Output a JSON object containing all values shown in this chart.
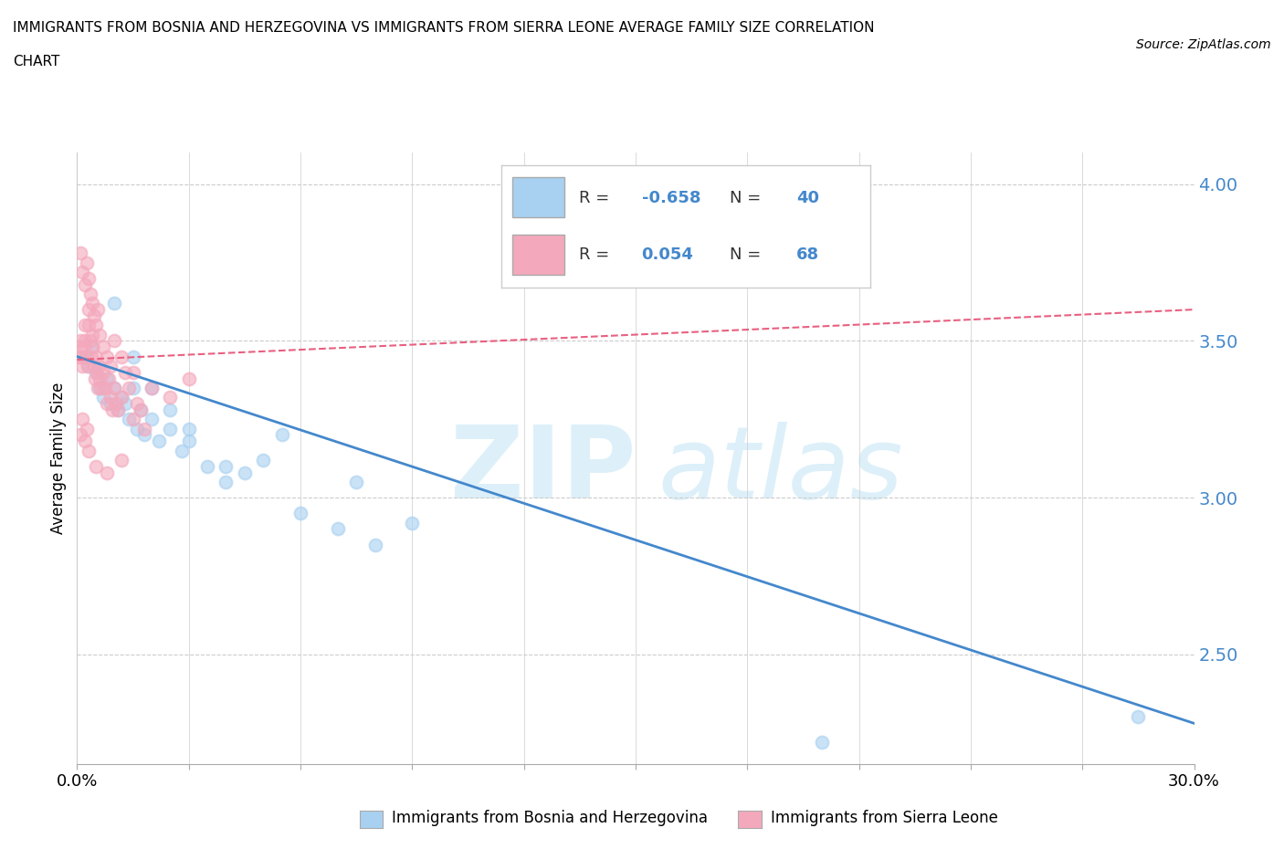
{
  "title_line1": "IMMIGRANTS FROM BOSNIA AND HERZEGOVINA VS IMMIGRANTS FROM SIERRA LEONE AVERAGE FAMILY SIZE CORRELATION",
  "title_line2": "CHART",
  "source": "Source: ZipAtlas.com",
  "ylabel": "Average Family Size",
  "xlim": [
    0.0,
    30.0
  ],
  "ylim": [
    2.15,
    4.1
  ],
  "yticks": [
    2.5,
    3.0,
    3.5,
    4.0
  ],
  "ytick_labels": [
    "2.50",
    "3.00",
    "3.50",
    "4.00"
  ],
  "bosnia_color": "#A8D0F0",
  "sierra_color": "#F4A8BC",
  "bosnia_line_color": "#4488CC",
  "sierra_line_color": "#E86080",
  "legend_box_color": "#A8D0F0",
  "legend_sierra_color": "#F4A8BC",
  "legend_r_color": "#4488CC",
  "legend_n_color": "#4488CC",
  "bosnia_scatter_x": [
    0.2,
    0.3,
    0.4,
    0.5,
    0.6,
    0.7,
    0.8,
    0.9,
    1.0,
    1.1,
    1.2,
    1.3,
    1.4,
    1.5,
    1.6,
    1.7,
    1.8,
    2.0,
    2.2,
    2.5,
    2.8,
    3.0,
    3.5,
    4.0,
    4.5,
    5.0,
    6.0,
    7.0,
    8.0,
    9.0,
    1.0,
    1.5,
    2.0,
    2.5,
    3.0,
    4.0,
    5.5,
    7.5,
    20.0,
    28.5
  ],
  "bosnia_scatter_y": [
    3.45,
    3.42,
    3.48,
    3.4,
    3.35,
    3.32,
    3.38,
    3.3,
    3.35,
    3.28,
    3.32,
    3.3,
    3.25,
    3.35,
    3.22,
    3.28,
    3.2,
    3.25,
    3.18,
    3.22,
    3.15,
    3.18,
    3.1,
    3.05,
    3.08,
    3.12,
    2.95,
    2.9,
    2.85,
    2.92,
    3.62,
    3.45,
    3.35,
    3.28,
    3.22,
    3.1,
    3.2,
    3.05,
    2.22,
    2.3
  ],
  "sierra_scatter_x": [
    0.05,
    0.08,
    0.1,
    0.12,
    0.15,
    0.18,
    0.2,
    0.22,
    0.25,
    0.28,
    0.3,
    0.32,
    0.35,
    0.38,
    0.4,
    0.42,
    0.45,
    0.48,
    0.5,
    0.52,
    0.55,
    0.58,
    0.6,
    0.65,
    0.7,
    0.75,
    0.8,
    0.85,
    0.9,
    0.95,
    1.0,
    1.05,
    1.1,
    1.2,
    1.3,
    1.4,
    1.5,
    1.6,
    1.7,
    1.8,
    0.1,
    0.15,
    0.2,
    0.25,
    0.3,
    0.35,
    0.4,
    0.45,
    0.5,
    0.55,
    0.6,
    0.7,
    0.8,
    0.9,
    1.0,
    1.2,
    1.5,
    2.0,
    2.5,
    3.0,
    0.1,
    0.15,
    0.2,
    0.25,
    0.3,
    0.5,
    0.8,
    1.2
  ],
  "sierra_scatter_y": [
    3.45,
    3.48,
    3.5,
    3.45,
    3.42,
    3.48,
    3.55,
    3.5,
    3.45,
    3.42,
    3.6,
    3.55,
    3.5,
    3.45,
    3.52,
    3.48,
    3.42,
    3.38,
    3.45,
    3.4,
    3.35,
    3.42,
    3.38,
    3.35,
    3.4,
    3.35,
    3.3,
    3.38,
    3.32,
    3.28,
    3.35,
    3.3,
    3.28,
    3.32,
    3.4,
    3.35,
    3.25,
    3.3,
    3.28,
    3.22,
    3.78,
    3.72,
    3.68,
    3.75,
    3.7,
    3.65,
    3.62,
    3.58,
    3.55,
    3.6,
    3.52,
    3.48,
    3.45,
    3.42,
    3.5,
    3.45,
    3.4,
    3.35,
    3.32,
    3.38,
    3.2,
    3.25,
    3.18,
    3.22,
    3.15,
    3.1,
    3.08,
    3.12
  ],
  "bottom_legend_bosnia": "Immigrants from Bosnia and Herzegovina",
  "bottom_legend_sierra": "Immigrants from Sierra Leone"
}
